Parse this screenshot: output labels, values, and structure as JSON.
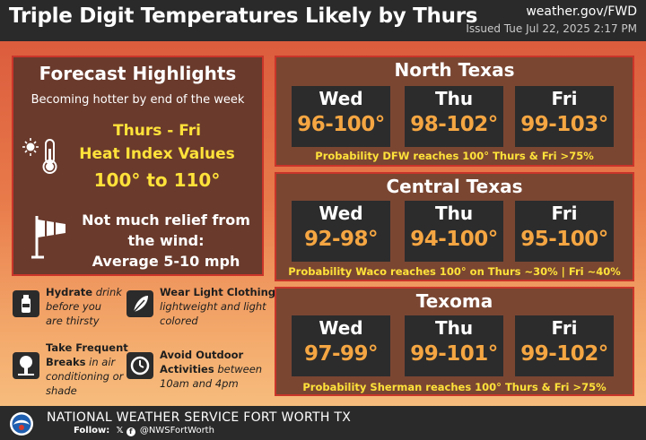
{
  "header": {
    "title": "Triple Digit Temperatures Likely by Thurs",
    "site": "weather.gov/FWD",
    "issued": "Issued Tue Jul 22, 2025 2:17 PM"
  },
  "highlights": {
    "title": "Forecast Highlights",
    "subtitle": "Becoming hotter by end of the week",
    "line1": "Thurs - Fri",
    "line2": "Heat Index Values",
    "line3": "100° to 110°",
    "wind1": "Not much relief from",
    "wind2": "the wind:",
    "wind3": "Average 5-10 mph"
  },
  "tips": [
    {
      "icon": "bottle-icon",
      "bold": "Hydrate",
      "rest1": " drink",
      "rest2": "before you",
      "rest3": "are thirsty"
    },
    {
      "icon": "clothing-icon",
      "bold": "Wear Light Clothing",
      "rest1": "lightweight and light",
      "rest2": "colored"
    },
    {
      "icon": "tree-icon",
      "bold1": "Take Frequent",
      "bold2": "Breaks",
      "rest1": " in air",
      "rest2": "conditioning or",
      "rest3": "shade"
    },
    {
      "icon": "clock-icon",
      "bold1": "Avoid Outdoor",
      "bold2": "Activities",
      "rest1": " between",
      "rest2": "10am and 4pm"
    }
  ],
  "regions": [
    {
      "name": "North Texas",
      "days": [
        {
          "day": "Wed",
          "range": "96-100°"
        },
        {
          "day": "Thu",
          "range": "98-102°"
        },
        {
          "day": "Fri",
          "range": "99-103°"
        }
      ],
      "probability": "Probability DFW reaches 100° Thurs & Fri  >75%"
    },
    {
      "name": "Central Texas",
      "days": [
        {
          "day": "Wed",
          "range": "92-98°"
        },
        {
          "day": "Thu",
          "range": "94-100°"
        },
        {
          "day": "Fri",
          "range": "95-100°"
        }
      ],
      "probability": "Probability Waco reaches 100° on Thurs ~30% | Fri ~40%"
    },
    {
      "name": "Texoma",
      "days": [
        {
          "day": "Wed",
          "range": "97-99°"
        },
        {
          "day": "Thu",
          "range": "99-101°"
        },
        {
          "day": "Fri",
          "range": "99-102°"
        }
      ],
      "probability": "Probability Sherman reaches 100° Thurs & Fri  >75%"
    }
  ],
  "footer": {
    "org": "NATIONAL WEATHER SERVICE FORT WORTH TX",
    "follow_label": "Follow:",
    "handle": "@NWSFortWorth"
  },
  "colors": {
    "accent_orange": "#f5a642",
    "accent_yellow": "#ffe23a",
    "panel_border": "#c9352a"
  }
}
